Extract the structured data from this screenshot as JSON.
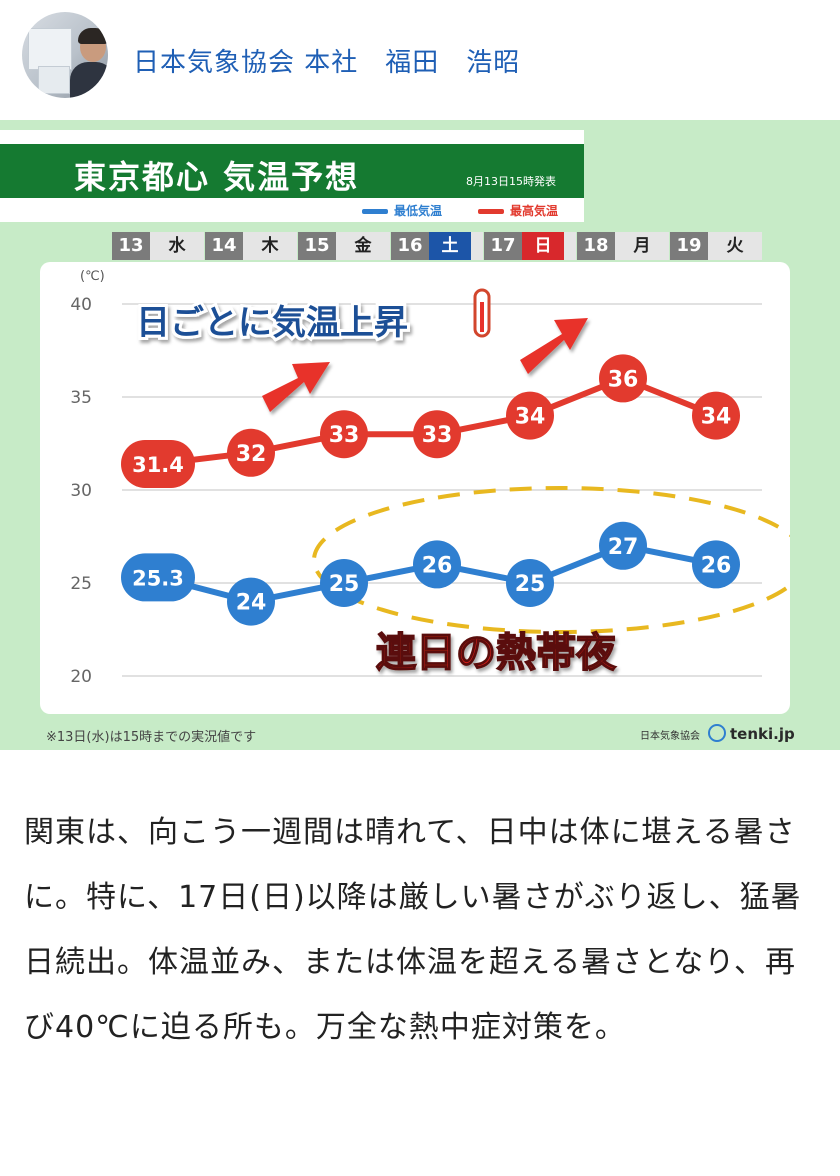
{
  "author": {
    "name": "日本気象協会 本社　福田　浩昭"
  },
  "figure": {
    "title": "東京都心 気温予想",
    "issued": "8月13日15時発表",
    "legend": [
      {
        "label": "最低気温",
        "color": "#2f7fd0"
      },
      {
        "label": "最高気温",
        "color": "#e23a2e"
      }
    ],
    "days": [
      {
        "date": "13",
        "weekday": "水",
        "type": "weekday"
      },
      {
        "date": "14",
        "weekday": "木",
        "type": "weekday"
      },
      {
        "date": "15",
        "weekday": "金",
        "type": "weekday"
      },
      {
        "date": "16",
        "weekday": "土",
        "type": "sat"
      },
      {
        "date": "17",
        "weekday": "日",
        "type": "sun"
      },
      {
        "date": "18",
        "weekday": "月",
        "type": "weekday"
      },
      {
        "date": "19",
        "weekday": "火",
        "type": "weekday"
      }
    ],
    "annotation_rise": "日ごとに気温上昇",
    "annotation_night": "連日の熱帯夜",
    "note": "※13日(水)は15時までの実況値です",
    "brand_org": "日本気象協会",
    "brand_site": "tenki.jp"
  },
  "chart_data": {
    "type": "line",
    "title": "東京都心 気温予想",
    "x": [
      "13",
      "14",
      "15",
      "16",
      "17",
      "18",
      "19"
    ],
    "ylabel": "(℃)",
    "ylim": [
      20,
      40
    ],
    "yticks": [
      20,
      25,
      30,
      35,
      40
    ],
    "grid": true,
    "legend_position": "top-right",
    "series": [
      {
        "name": "最高気温",
        "color": "#e23a2e",
        "values": [
          31.4,
          32,
          33,
          33,
          34,
          36,
          34
        ],
        "labels": [
          "31.4",
          "32",
          "33",
          "33",
          "34",
          "36",
          "34"
        ]
      },
      {
        "name": "最低気温",
        "color": "#2f7fd0",
        "values": [
          25.3,
          24,
          25,
          26,
          25,
          27,
          26
        ],
        "labels": [
          "25.3",
          "24",
          "25",
          "26",
          "25",
          "27",
          "26"
        ]
      }
    ]
  },
  "article": {
    "text": "関東は、向こう一週間は晴れて、日中は体に堪える暑さに。特に、17日(日)以降は厳しい暑さがぶり返し、猛暑日続出。体温並み、または体温を超える暑さとなり、再び40℃に迫る所も。万全な熱中症対策を。"
  }
}
